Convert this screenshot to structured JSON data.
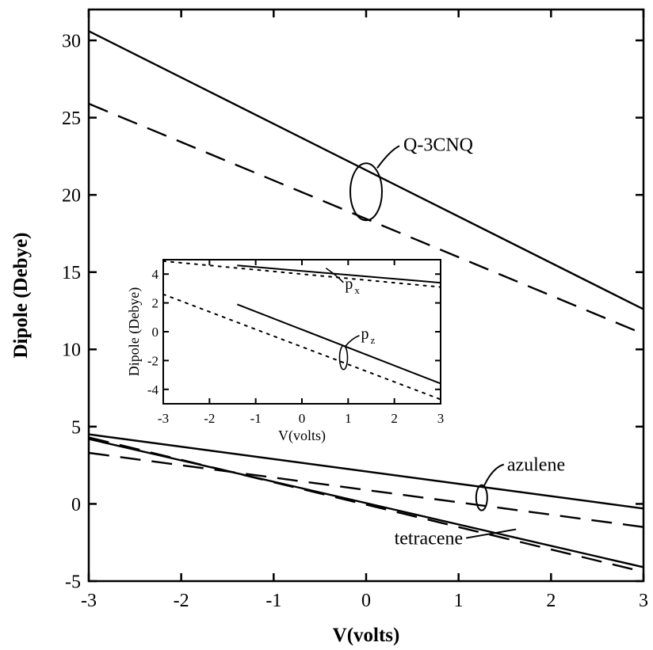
{
  "chart_data": [
    {
      "type": "line",
      "xlabel": "V(volts)",
      "ylabel": "Dipole (Debye)",
      "xlim": [
        -3,
        3
      ],
      "ylim": [
        -5,
        32
      ],
      "xticks": [
        -3,
        -2,
        -1,
        0,
        1,
        2,
        3
      ],
      "yticks": [
        -5,
        0,
        5,
        10,
        15,
        20,
        25,
        30
      ],
      "xtick_labels": [
        "-3",
        "-2",
        "-1",
        "0",
        "1",
        "2",
        "3"
      ],
      "ytick_labels": [
        "-5",
        "0",
        "5",
        "10",
        "15",
        "20",
        "25",
        "30"
      ],
      "series": [
        {
          "name": "Q-3CNQ",
          "style": "solid",
          "x": [
            -3,
            3
          ],
          "y": [
            30.6,
            12.6
          ]
        },
        {
          "name": "Q-3CNQ",
          "style": "dashed",
          "x": [
            -3,
            3
          ],
          "y": [
            25.9,
            11.0
          ]
        },
        {
          "name": "azulene",
          "style": "solid",
          "x": [
            -3,
            3
          ],
          "y": [
            4.5,
            -0.3
          ]
        },
        {
          "name": "azulene",
          "style": "dashed",
          "x": [
            -3,
            3
          ],
          "y": [
            3.3,
            -1.5
          ]
        },
        {
          "name": "tetracene",
          "style": "solid",
          "x": [
            -3,
            3
          ],
          "y": [
            4.2,
            -4.1
          ]
        },
        {
          "name": "tetracene",
          "style": "dashed",
          "x": [
            -3,
            3
          ],
          "y": [
            4.3,
            -4.4
          ]
        }
      ],
      "annotations": [
        {
          "text": "Q-3CNQ",
          "x": 0.0,
          "y": 20.2
        },
        {
          "text": "azulene",
          "x": 1.25,
          "y": 0.4
        },
        {
          "text": "tetracene",
          "x": 1.15,
          "y": -1.8
        }
      ],
      "grid": false
    },
    {
      "type": "line",
      "inset": true,
      "xlabel": "V(volts)",
      "ylabel": "Dipole (Debye)",
      "xlim": [
        -3,
        3
      ],
      "ylim": [
        -5,
        5
      ],
      "xticks": [
        -3,
        -2,
        -1,
        0,
        1,
        2,
        3
      ],
      "yticks": [
        -4,
        -2,
        0,
        2,
        4
      ],
      "xtick_labels": [
        "-3",
        "-2",
        "-1",
        "0",
        "1",
        "2",
        "3"
      ],
      "ytick_labels": [
        "-4",
        "-2",
        "0",
        "2",
        "4"
      ],
      "series": [
        {
          "name": "px",
          "style": "solid",
          "x": [
            -1.4,
            3
          ],
          "y": [
            4.6,
            3.4
          ]
        },
        {
          "name": "px",
          "style": "dotted",
          "x": [
            -3,
            3
          ],
          "y": [
            4.9,
            3.1
          ]
        },
        {
          "name": "pz",
          "style": "solid",
          "x": [
            -1.4,
            3
          ],
          "y": [
            1.9,
            -3.6
          ]
        },
        {
          "name": "pz",
          "style": "dotted",
          "x": [
            -3,
            3
          ],
          "y": [
            2.6,
            -4.7
          ]
        }
      ],
      "annotations": [
        {
          "text": "p",
          "sub": "x",
          "x": 1.0,
          "y": 3.2
        },
        {
          "text": "p",
          "sub": "z",
          "x": 0.9,
          "y": -1.8
        }
      ],
      "grid": false
    }
  ]
}
